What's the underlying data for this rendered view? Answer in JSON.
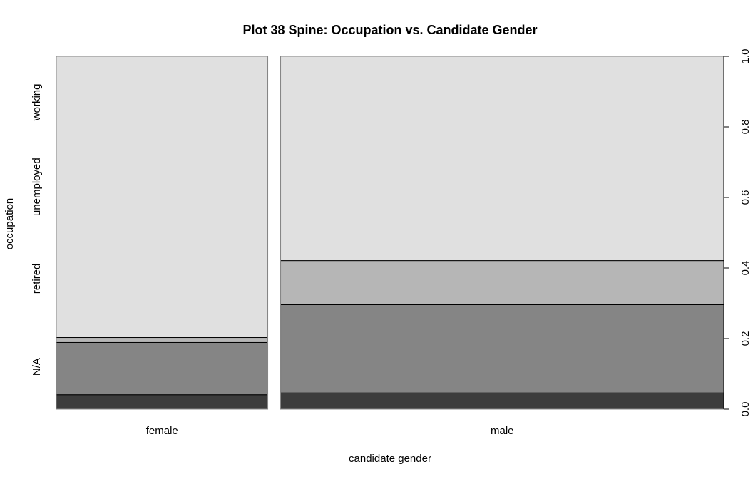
{
  "chart_data": {
    "type": "spine",
    "title": "Plot 38 Spine: Occupation vs. Candidate Gender",
    "xlabel": "candidate gender",
    "ylabel": "occupation",
    "x_categories": [
      "female",
      "male"
    ],
    "x_proportions": [
      0.323,
      0.677
    ],
    "y_categories": [
      "N/A",
      "retired",
      "unemployed",
      "working"
    ],
    "y_category_label_positions": [
      0.12,
      0.37,
      0.63,
      0.87
    ],
    "fill_colors": [
      "#3c3c3c",
      "#858585",
      "#b6b6b6",
      "#e0e0e0"
    ],
    "series": [
      {
        "x": "female",
        "values": [
          0.041,
          0.148,
          0.014,
          0.797
        ]
      },
      {
        "x": "male",
        "values": [
          0.046,
          0.25,
          0.125,
          0.579
        ]
      }
    ],
    "right_axis_ticks": [
      "0.0",
      "0.2",
      "0.4",
      "0.6",
      "0.8",
      "1.0"
    ],
    "right_axis_tick_values": [
      0,
      0.2,
      0.4,
      0.6,
      0.8,
      1.0
    ],
    "ylim": [
      0,
      1
    ]
  }
}
